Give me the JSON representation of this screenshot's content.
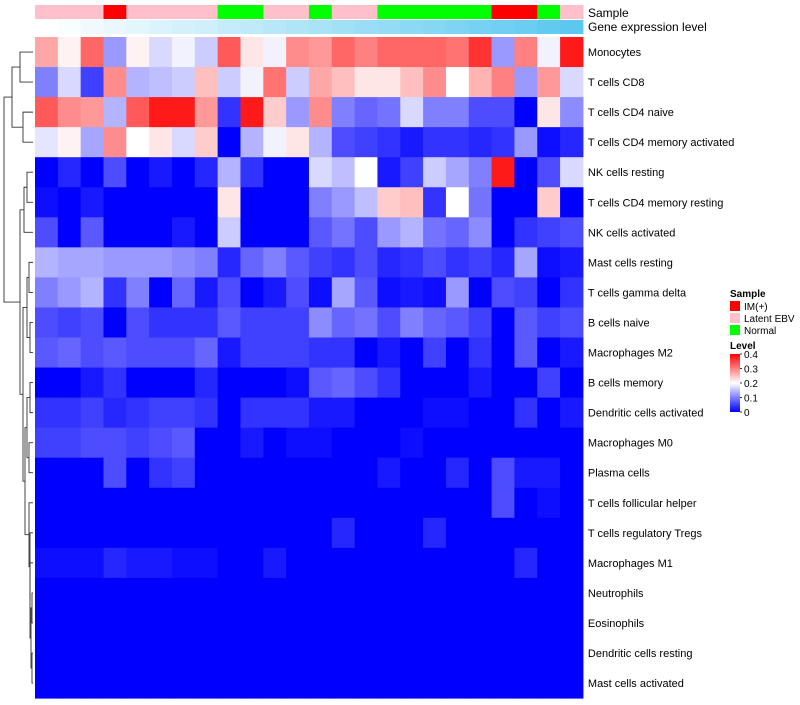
{
  "chart_data": {
    "type": "heatmap",
    "annotation_labels": [
      "Sample",
      "Gene expression level"
    ],
    "rows": [
      "Monocytes",
      "T cells CD8",
      "T cells CD4 naive",
      "T cells CD4 memory activated",
      "NK cells resting",
      "T cells CD4 memory resting",
      "NK cells activated",
      "Mast cells resting",
      "T cells gamma delta",
      "B cells naive",
      "Macrophages M2",
      "B cells memory",
      "Dendritic cells activated",
      "Macrophages M0",
      "Plasma cells",
      "T cells follicular helper",
      "T cells regulatory  Tregs",
      "Macrophages M1",
      "Neutrophils",
      "Eosinophils",
      "Dendritic cells resting",
      "Mast cells activated"
    ],
    "sample_groups": [
      "Latent EBV",
      "Latent EBV",
      "Latent EBV",
      "IM(+)",
      "Latent EBV",
      "Latent EBV",
      "Latent EBV",
      "Latent EBV",
      "Normal",
      "Normal",
      "Latent EBV",
      "Latent EBV",
      "Normal",
      "Latent EBV",
      "Latent EBV",
      "Normal",
      "Normal",
      "Normal",
      "Normal",
      "Normal",
      "IM(+)",
      "IM(+)",
      "Normal",
      "Latent EBV"
    ],
    "gene_expression_level": [
      0.0,
      0.04,
      0.09,
      0.13,
      0.17,
      0.22,
      0.26,
      0.3,
      0.35,
      0.39,
      0.43,
      0.48,
      0.52,
      0.57,
      0.61,
      0.65,
      0.7,
      0.74,
      0.78,
      0.83,
      0.87,
      0.91,
      0.96,
      1.0
    ],
    "values": [
      [
        0.27,
        0.21,
        0.32,
        0.12,
        0.21,
        0.17,
        0.19,
        0.16,
        0.33,
        0.22,
        0.19,
        0.29,
        0.28,
        0.32,
        0.3,
        0.32,
        0.32,
        0.32,
        0.31,
        0.36,
        0.12,
        0.3,
        0.19,
        0.38
      ],
      [
        0.1,
        0.17,
        0.05,
        0.29,
        0.14,
        0.15,
        0.16,
        0.25,
        0.16,
        0.19,
        0.31,
        0.16,
        0.27,
        0.25,
        0.22,
        0.22,
        0.25,
        0.29,
        0.2,
        0.26,
        0.3,
        0.12,
        0.28,
        0.17
      ],
      [
        0.33,
        0.29,
        0.28,
        0.14,
        0.33,
        0.38,
        0.38,
        0.28,
        0.04,
        0.38,
        0.24,
        0.12,
        0.29,
        0.1,
        0.08,
        0.09,
        0.17,
        0.1,
        0.1,
        0.06,
        0.06,
        0.0,
        0.22,
        0.11
      ],
      [
        0.18,
        0.21,
        0.13,
        0.29,
        0.2,
        0.22,
        0.17,
        0.24,
        0.0,
        0.14,
        0.19,
        0.22,
        0.14,
        0.06,
        0.05,
        0.04,
        0.02,
        0.04,
        0.04,
        0.03,
        0.04,
        0.12,
        0.01,
        0.03
      ],
      [
        0.0,
        0.03,
        0.0,
        0.06,
        0.0,
        0.02,
        0.0,
        0.03,
        0.14,
        0.04,
        0.0,
        0.0,
        0.17,
        0.15,
        0.2,
        0.02,
        0.05,
        0.16,
        0.13,
        0.1,
        0.38,
        0.0,
        0.06,
        0.17
      ],
      [
        0.01,
        0.0,
        0.02,
        0.0,
        0.0,
        0.0,
        0.0,
        0.0,
        0.22,
        0.0,
        0.0,
        0.0,
        0.1,
        0.12,
        0.15,
        0.24,
        0.25,
        0.04,
        0.2,
        0.09,
        0.0,
        0.0,
        0.24,
        0.0
      ],
      [
        0.06,
        0.0,
        0.07,
        0.0,
        0.0,
        0.0,
        0.02,
        0.0,
        0.16,
        0.0,
        0.0,
        0.0,
        0.07,
        0.09,
        0.06,
        0.12,
        0.14,
        0.09,
        0.08,
        0.11,
        0.0,
        0.04,
        0.05,
        0.06
      ],
      [
        0.14,
        0.13,
        0.13,
        0.12,
        0.12,
        0.12,
        0.11,
        0.1,
        0.03,
        0.08,
        0.1,
        0.07,
        0.05,
        0.04,
        0.06,
        0.03,
        0.04,
        0.06,
        0.04,
        0.05,
        0.03,
        0.13,
        0.01,
        0.02
      ],
      [
        0.1,
        0.12,
        0.14,
        0.04,
        0.1,
        0.0,
        0.08,
        0.02,
        0.06,
        0.0,
        0.02,
        0.06,
        0.01,
        0.13,
        0.07,
        0.01,
        0.02,
        0.01,
        0.12,
        0.0,
        0.06,
        0.05,
        0.0,
        0.04
      ],
      [
        0.06,
        0.05,
        0.06,
        0.0,
        0.06,
        0.04,
        0.04,
        0.04,
        0.07,
        0.05,
        0.05,
        0.05,
        0.11,
        0.08,
        0.09,
        0.06,
        0.1,
        0.08,
        0.07,
        0.05,
        0.0,
        0.07,
        0.05,
        0.06
      ],
      [
        0.07,
        0.08,
        0.06,
        0.07,
        0.06,
        0.06,
        0.06,
        0.08,
        0.02,
        0.05,
        0.05,
        0.05,
        0.04,
        0.04,
        0.0,
        0.02,
        0.0,
        0.05,
        0.0,
        0.04,
        0.0,
        0.07,
        0.0,
        0.02
      ],
      [
        0.0,
        0.0,
        0.02,
        0.04,
        0.0,
        0.0,
        0.0,
        0.03,
        0.0,
        0.0,
        0.0,
        0.01,
        0.07,
        0.08,
        0.06,
        0.04,
        0.0,
        0.0,
        0.0,
        0.02,
        0.0,
        0.0,
        0.05,
        0.0
      ],
      [
        0.04,
        0.04,
        0.05,
        0.03,
        0.04,
        0.05,
        0.05,
        0.04,
        0.0,
        0.04,
        0.04,
        0.04,
        0.02,
        0.02,
        0.0,
        0.0,
        0.0,
        0.01,
        0.01,
        0.0,
        0.0,
        0.04,
        0.0,
        0.02
      ],
      [
        0.05,
        0.05,
        0.06,
        0.06,
        0.05,
        0.06,
        0.07,
        0.0,
        0.0,
        0.02,
        0.0,
        0.01,
        0.01,
        0.0,
        0.0,
        0.0,
        0.01,
        0.0,
        0.0,
        0.0,
        0.0,
        0.0,
        0.0,
        0.0
      ],
      [
        0.0,
        0.0,
        0.0,
        0.06,
        0.0,
        0.04,
        0.05,
        0.0,
        0.0,
        0.0,
        0.0,
        0.0,
        0.0,
        0.0,
        0.0,
        0.02,
        0.0,
        0.0,
        0.03,
        0.0,
        0.06,
        0.02,
        0.02,
        0.0
      ],
      [
        0.0,
        0.0,
        0.0,
        0.0,
        0.0,
        0.0,
        0.0,
        0.0,
        0.0,
        0.0,
        0.0,
        0.0,
        0.0,
        0.0,
        0.0,
        0.0,
        0.0,
        0.0,
        0.0,
        0.0,
        0.06,
        0.0,
        0.01,
        0.0
      ],
      [
        0.0,
        0.0,
        0.0,
        0.0,
        0.0,
        0.0,
        0.0,
        0.0,
        0.0,
        0.0,
        0.0,
        0.0,
        0.0,
        0.03,
        0.0,
        0.0,
        0.0,
        0.03,
        0.0,
        0.0,
        0.0,
        0.0,
        0.0,
        0.0
      ],
      [
        0.01,
        0.01,
        0.01,
        0.03,
        0.02,
        0.02,
        0.01,
        0.01,
        0.0,
        0.0,
        0.02,
        0.0,
        0.0,
        0.0,
        0.0,
        0.0,
        0.0,
        0.0,
        0.0,
        0.0,
        0.0,
        0.03,
        0.0,
        0.0
      ],
      [
        0.0,
        0.0,
        0.0,
        0.0,
        0.0,
        0.0,
        0.0,
        0.0,
        0.0,
        0.0,
        0.0,
        0.0,
        0.0,
        0.0,
        0.0,
        0.0,
        0.0,
        0.0,
        0.0,
        0.0,
        0.0,
        0.0,
        0.0,
        0.0
      ],
      [
        0.0,
        0.0,
        0.0,
        0.0,
        0.0,
        0.0,
        0.0,
        0.0,
        0.0,
        0.0,
        0.0,
        0.0,
        0.0,
        0.0,
        0.0,
        0.0,
        0.0,
        0.0,
        0.0,
        0.0,
        0.0,
        0.0,
        0.0,
        0.0
      ],
      [
        0.0,
        0.0,
        0.0,
        0.0,
        0.0,
        0.0,
        0.0,
        0.0,
        0.0,
        0.0,
        0.0,
        0.0,
        0.0,
        0.0,
        0.0,
        0.0,
        0.0,
        0.0,
        0.0,
        0.0,
        0.0,
        0.0,
        0.0,
        0.0
      ],
      [
        0.0,
        0.0,
        0.0,
        0.0,
        0.0,
        0.0,
        0.0,
        0.0,
        0.0,
        0.0,
        0.0,
        0.0,
        0.0,
        0.0,
        0.0,
        0.0,
        0.0,
        0.0,
        0.0,
        0.0,
        0.0,
        0.0,
        0.0,
        0.0
      ]
    ],
    "color_scale": {
      "stops": [
        0,
        0.2,
        0.4
      ],
      "colors": [
        "#0000ff",
        "#ffffff",
        "#ff0000"
      ],
      "range": [
        0,
        0.4
      ]
    },
    "expression_colors": [
      "#ffffff",
      "#5bc8f0"
    ],
    "legend": {
      "placement": "right",
      "sample_title": "Sample",
      "sample_entries": [
        {
          "label": "IM(+)",
          "color": "#ff0000"
        },
        {
          "label": "Latent EBV",
          "color": "#ffc0cb"
        },
        {
          "label": "Normal",
          "color": "#00ff00"
        }
      ],
      "level_title": "Level",
      "level_ticks": [
        "0.4",
        "0.3",
        "0.2",
        "0.1",
        "0"
      ]
    },
    "dendrogram": "rows"
  }
}
